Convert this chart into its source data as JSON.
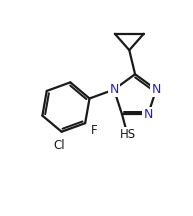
{
  "bg_color": "#ffffff",
  "line_color": "#1a1a1a",
  "atom_color_N": "#2222bb",
  "atom_color_S": "#1a1a1a",
  "atom_color_F": "#1a1a1a",
  "atom_color_Cl": "#1a1a1a",
  "line_width": 1.6,
  "figsize": [
    1.93,
    2.16
  ],
  "dpi": 100,
  "xlim": [
    0,
    10
  ],
  "ylim": [
    0,
    11.2
  ]
}
